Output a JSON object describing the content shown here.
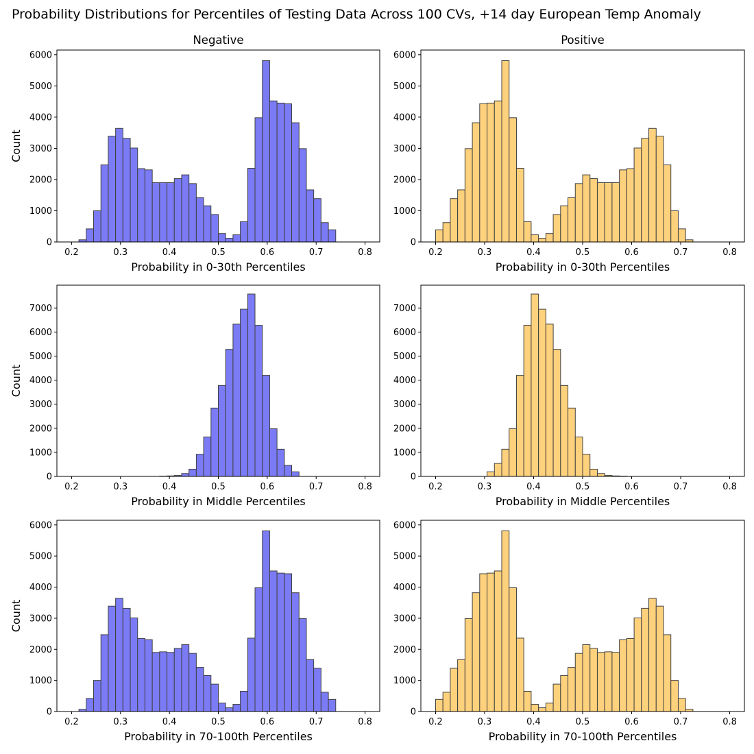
{
  "figure": {
    "suptitle": "Probability Distributions for Percentiles of Testing Data Across 100 CVs, +14 day European Temp Anomaly"
  },
  "colors": {
    "negative": "#7b7bf5",
    "positive": "#fed17d",
    "edge": "#404040"
  },
  "chart_data": [
    {
      "type": "bar",
      "title": "Negative",
      "xlabel": "Probability in 0-30th Percentiles",
      "ylabel": "Count",
      "color": "negative",
      "xlim": [
        0.17,
        0.83
      ],
      "ylim": [
        0,
        6150
      ],
      "xticks": [
        "0.2",
        "0.3",
        "0.4",
        "0.5",
        "0.6",
        "0.7",
        "0.8"
      ],
      "yticks": [
        "0",
        "1000",
        "2000",
        "3000",
        "4000",
        "5000",
        "6000"
      ],
      "bin_start": 0.2,
      "bin_width": 0.015,
      "values": [
        0,
        70,
        420,
        1000,
        2470,
        3390,
        3640,
        3320,
        3010,
        2350,
        2310,
        1900,
        1900,
        1900,
        2030,
        2150,
        1870,
        1420,
        1160,
        880,
        270,
        120,
        230,
        650,
        2360,
        3980,
        5810,
        4520,
        4450,
        4430,
        3820,
        2990,
        1670,
        1390,
        620,
        390
      ]
    },
    {
      "type": "bar",
      "title": "Positive",
      "xlabel": "Probability in 0-30th Percentiles",
      "ylabel": "",
      "color": "positive",
      "xlim": [
        0.17,
        0.83
      ],
      "ylim": [
        0,
        6150
      ],
      "xticks": [
        "0.2",
        "0.3",
        "0.4",
        "0.5",
        "0.6",
        "0.7",
        "0.8"
      ],
      "yticks": [
        "0",
        "1000",
        "2000",
        "3000",
        "4000",
        "5000",
        "6000"
      ],
      "bin_start": 0.2,
      "bin_width": 0.015,
      "values": [
        390,
        620,
        1390,
        1670,
        2990,
        3820,
        4430,
        4450,
        4520,
        5810,
        3980,
        2360,
        650,
        230,
        120,
        270,
        880,
        1160,
        1420,
        1870,
        2150,
        2030,
        1900,
        1900,
        1900,
        2310,
        2350,
        3010,
        3320,
        3640,
        3390,
        2470,
        1000,
        420,
        70,
        0
      ]
    },
    {
      "type": "bar",
      "title": "",
      "xlabel": "Probability in Middle Percentiles",
      "ylabel": "Count",
      "color": "negative",
      "xlim": [
        0.17,
        0.83
      ],
      "ylim": [
        0,
        7950
      ],
      "xticks": [
        "0.2",
        "0.3",
        "0.4",
        "0.5",
        "0.6",
        "0.7",
        "0.8"
      ],
      "yticks": [
        "0",
        "1000",
        "2000",
        "3000",
        "4000",
        "5000",
        "6000",
        "7000"
      ],
      "bin_start": 0.2,
      "bin_width": 0.015,
      "values": [
        0,
        0,
        0,
        0,
        0,
        0,
        0,
        0,
        0,
        0,
        0,
        0,
        10,
        20,
        40,
        120,
        300,
        920,
        1640,
        2840,
        3780,
        5280,
        6330,
        6950,
        7580,
        6280,
        4200,
        1980,
        1130,
        460,
        190,
        0,
        0,
        0,
        0,
        0
      ]
    },
    {
      "type": "bar",
      "title": "",
      "xlabel": "Probability in Middle Percentiles",
      "ylabel": "",
      "color": "positive",
      "xlim": [
        0.17,
        0.83
      ],
      "ylim": [
        0,
        7950
      ],
      "xticks": [
        "0.2",
        "0.3",
        "0.4",
        "0.5",
        "0.6",
        "0.7",
        "0.8"
      ],
      "yticks": [
        "0",
        "1000",
        "2000",
        "3000",
        "4000",
        "5000",
        "6000",
        "7000"
      ],
      "bin_start": 0.2,
      "bin_width": 0.015,
      "values": [
        0,
        0,
        0,
        0,
        0,
        0,
        0,
        190,
        540,
        1130,
        1980,
        4200,
        6280,
        7580,
        6950,
        6330,
        5280,
        3780,
        2840,
        1640,
        920,
        300,
        120,
        40,
        20,
        10,
        0,
        0,
        0,
        0,
        0,
        0,
        0,
        0,
        0,
        0
      ]
    },
    {
      "type": "bar",
      "title": "",
      "xlabel": "Probability in 70-100th Percentiles",
      "ylabel": "Count",
      "color": "negative",
      "xlim": [
        0.17,
        0.83
      ],
      "ylim": [
        0,
        6150
      ],
      "xticks": [
        "0.2",
        "0.3",
        "0.4",
        "0.5",
        "0.6",
        "0.7",
        "0.8"
      ],
      "yticks": [
        "0",
        "1000",
        "2000",
        "3000",
        "4000",
        "5000",
        "6000"
      ],
      "bin_start": 0.2,
      "bin_width": 0.015,
      "values": [
        0,
        70,
        420,
        1000,
        2470,
        3390,
        3640,
        3320,
        3010,
        2350,
        2310,
        1900,
        1920,
        1900,
        2030,
        2150,
        1870,
        1420,
        1160,
        880,
        270,
        120,
        230,
        650,
        2360,
        3980,
        5810,
        4520,
        4450,
        4430,
        3820,
        2990,
        1670,
        1390,
        620,
        390
      ]
    },
    {
      "type": "bar",
      "title": "",
      "xlabel": "Probability in 70-100th Percentiles",
      "ylabel": "",
      "color": "positive",
      "xlim": [
        0.17,
        0.83
      ],
      "ylim": [
        0,
        6150
      ],
      "xticks": [
        "0.2",
        "0.3",
        "0.4",
        "0.5",
        "0.6",
        "0.7",
        "0.8"
      ],
      "yticks": [
        "0",
        "1000",
        "2000",
        "3000",
        "4000",
        "5000",
        "6000"
      ],
      "bin_start": 0.2,
      "bin_width": 0.015,
      "values": [
        390,
        620,
        1390,
        1670,
        2990,
        3820,
        4430,
        4450,
        4520,
        5810,
        3980,
        2360,
        650,
        230,
        120,
        270,
        880,
        1160,
        1420,
        1870,
        2150,
        2030,
        1900,
        1920,
        1900,
        2310,
        2350,
        3010,
        3320,
        3640,
        3390,
        2470,
        1000,
        420,
        70,
        0
      ]
    }
  ]
}
